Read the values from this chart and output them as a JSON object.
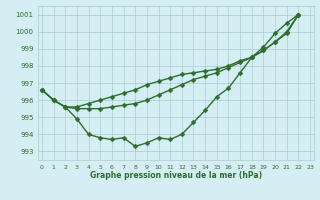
{
  "title": "Graphe pression niveau de la mer (hPa)",
  "background_color": "#d4eef4",
  "grid_color": "#aacccc",
  "line_color": "#2d6e2d",
  "tick_color": "#2d6e2d",
  "ylim": [
    992.5,
    1001.5
  ],
  "yticks": [
    993,
    994,
    995,
    996,
    997,
    998,
    999,
    1000,
    1001
  ],
  "xlim": [
    -0.3,
    23.3
  ],
  "xticks": [
    0,
    1,
    2,
    3,
    4,
    5,
    6,
    7,
    8,
    9,
    10,
    11,
    12,
    13,
    14,
    15,
    16,
    17,
    18,
    19,
    20,
    21,
    22,
    23
  ],
  "y_main": [
    996.6,
    996.0,
    995.6,
    994.9,
    994.0,
    993.8,
    993.7,
    993.8,
    993.3,
    993.5,
    993.8,
    993.7,
    994.0,
    994.7,
    995.4,
    996.2,
    996.7,
    997.6,
    998.5,
    999.1,
    999.9,
    1000.5,
    1001.0
  ],
  "y_line2": [
    996.6,
    996.0,
    995.6,
    995.5,
    995.5,
    995.5,
    995.6,
    995.7,
    995.8,
    996.0,
    996.3,
    996.6,
    996.9,
    997.2,
    997.4,
    997.6,
    997.9,
    998.2,
    998.5,
    998.9,
    999.4,
    999.9,
    1001.0
  ],
  "y_line3": [
    996.6,
    996.0,
    995.6,
    995.6,
    995.8,
    996.0,
    996.2,
    996.4,
    996.6,
    996.9,
    997.1,
    997.3,
    997.5,
    997.6,
    997.7,
    997.8,
    998.0,
    998.3,
    998.5,
    998.9,
    999.4,
    1000.0,
    1001.0
  ],
  "marker": "D",
  "marker_size": 2.5,
  "line_width": 1.0
}
